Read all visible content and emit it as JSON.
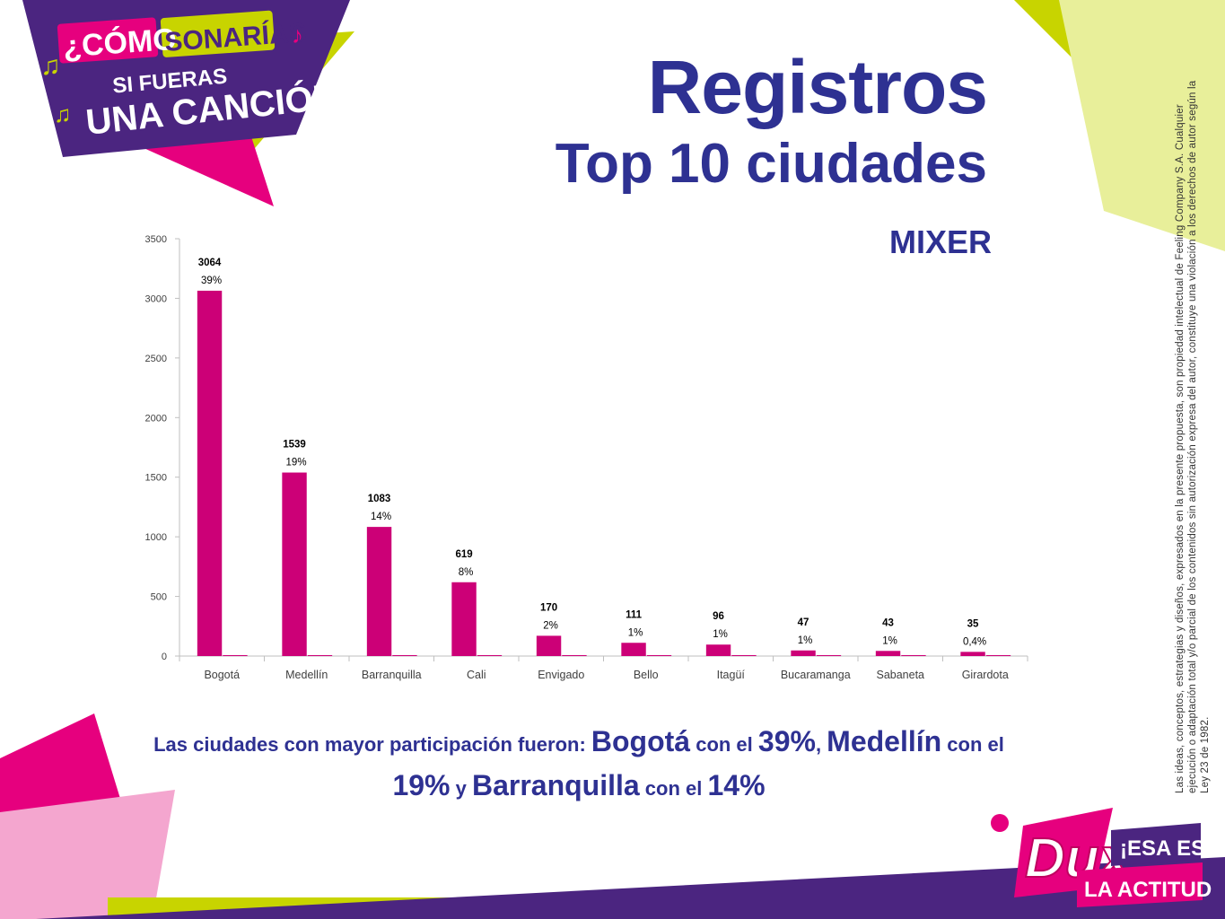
{
  "header": {
    "campaign_logo_text": [
      "¿CÓMO",
      "SONARÍAS",
      "SI FUERAS",
      "UNA CANCIÓN?"
    ],
    "title": "Registros",
    "subtitle": "Top 10 ciudades",
    "brand": "MIXER"
  },
  "legal_note": "Las ideas, conceptos, estrategias y diseños, expresados en la presente propuesta, son propiedad intelectual de Feeling Company S.A. Cualquier ejecución o adaptación total y/o parcial de los contenidos sin autorización expresa del autor, constituye una violación a los derechos de autor según la Ley 23 de 1982.",
  "conclusion": {
    "p1": "Las ciudades con mayor participación fueron: ",
    "c1": "Bogotá",
    "p2": " con el ",
    "v1": "39%",
    "p3": ", ",
    "c2": "Medellín",
    "p4": " con el ",
    "v2": "19%",
    "p5": " y ",
    "c3": "Barranquilla",
    "p6": " con el ",
    "v3": "14%"
  },
  "footer_logo": {
    "brand": "Dux",
    "tagline_1": "¡ESA ES",
    "tagline_2": "LA ACTITUD!"
  },
  "colors": {
    "bar": "#cc0077",
    "title": "#2e3192",
    "lime": "#c8d400",
    "magenta": "#e6007e",
    "purple": "#4b2580"
  },
  "chart_data": {
    "type": "bar",
    "categories": [
      "Bogotá",
      "Medellín",
      "Barranquilla",
      "Cali",
      "Envigado",
      "Bello",
      "Itagüí",
      "Bucaramanga",
      "Sabaneta",
      "Girardota"
    ],
    "values": [
      3064,
      1539,
      1083,
      619,
      170,
      111,
      96,
      47,
      43,
      35
    ],
    "percent_labels": [
      "39%",
      "19%",
      "14%",
      "8%",
      "2%",
      "1%",
      "1%",
      "1%",
      "1%",
      "0,4%"
    ],
    "ylim": [
      0,
      3500
    ],
    "yticks": [
      0,
      500,
      1000,
      1500,
      2000,
      2500,
      3000,
      3500
    ],
    "grid": false,
    "legend": "none",
    "title": "",
    "xlabel": "",
    "ylabel": ""
  }
}
